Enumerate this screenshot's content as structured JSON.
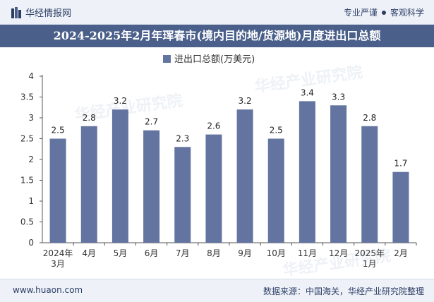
{
  "header": {
    "brand": "华经情报网",
    "slogan_left": "专业严谨",
    "slogan_right": "客观科学"
  },
  "title": "2024-2025年2月年珲春市(境内目的地/货源地)月度进出口总额",
  "watermark": "华经产业研究院",
  "footer": {
    "website": "www.huaon.com",
    "source": "数据来源：中国海关，华经产业研究院整理"
  },
  "colors": {
    "bar": "#6474a0",
    "title_bg": "#4a5f8a",
    "accent": "#2c3e66"
  },
  "chart_data": {
    "type": "bar",
    "title": "2024-2025年2月年珲春市(境内目的地/货源地)月度进出口总额",
    "categories": [
      "2024年\n3月",
      "4月",
      "5月",
      "6月",
      "7月",
      "8月",
      "9月",
      "10月",
      "11月",
      "12月",
      "2025年\n1月",
      "2月"
    ],
    "series": [
      {
        "name": "进出口总额(万美元)",
        "values": [
          2.5,
          2.8,
          3.2,
          2.7,
          2.3,
          2.6,
          3.2,
          2.5,
          3.4,
          3.3,
          2.8,
          1.7
        ]
      }
    ],
    "ylim": [
      0,
      4
    ],
    "yticks": [
      "0",
      "0.5",
      "1",
      "1.5",
      "2",
      "2.5",
      "3",
      "3.5",
      "4"
    ],
    "xlabel": "",
    "ylabel": "",
    "legend_position": "top-center",
    "grid": false
  }
}
